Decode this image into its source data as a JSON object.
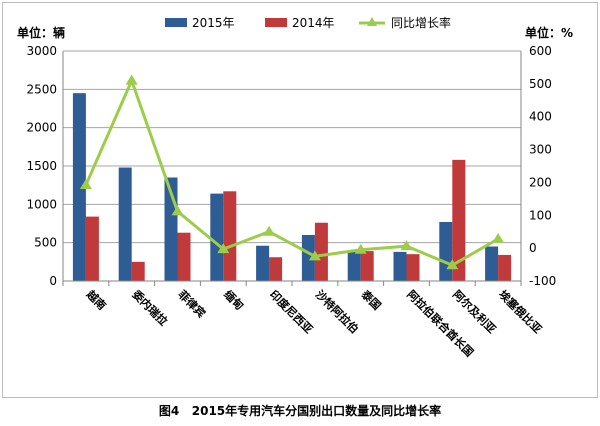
{
  "caption": {
    "figure_label": "图4",
    "text": "2015年专用汽车分国别出口数量及同比增长率"
  },
  "colors": {
    "series_2015": "#2e5c94",
    "series_2014": "#c0393b",
    "growth_line": "#9ccc4a",
    "grid": "#a6a6a6"
  },
  "chart_data": {
    "type": "bar",
    "title": "",
    "legend_position": "top-center",
    "grid": true,
    "categories": [
      "越南",
      "委内瑞拉",
      "菲律宾",
      "缅甸",
      "印度尼西亚",
      "沙特阿拉伯",
      "泰国",
      "阿拉伯联合酋长国",
      "阿尔及利亚",
      "埃塞俄比亚"
    ],
    "left_axis": {
      "label": "单位：辆",
      "range": [
        0,
        3000
      ],
      "ticks": [
        "0",
        "500",
        "1000",
        "1500",
        "2000",
        "2500",
        "3000"
      ]
    },
    "right_axis": {
      "label": "单位：%",
      "range": [
        -100,
        600
      ],
      "ticks": [
        "-100",
        "0",
        "100",
        "200",
        "300",
        "400",
        "500",
        "600"
      ]
    },
    "series": [
      {
        "name": "2015年",
        "type": "bar",
        "axis": "left",
        "values": [
          2450,
          1480,
          1350,
          1140,
          460,
          600,
          380,
          380,
          770,
          450
        ]
      },
      {
        "name": "2014年",
        "type": "bar",
        "axis": "left",
        "values": [
          840,
          250,
          630,
          1170,
          310,
          760,
          390,
          350,
          1580,
          340
        ]
      },
      {
        "name": "同比增长率",
        "type": "line",
        "axis": "right",
        "marker": "triangle",
        "values": [
          192,
          510,
          112,
          -3,
          50,
          -25,
          -5,
          6,
          -52,
          28
        ]
      }
    ]
  }
}
